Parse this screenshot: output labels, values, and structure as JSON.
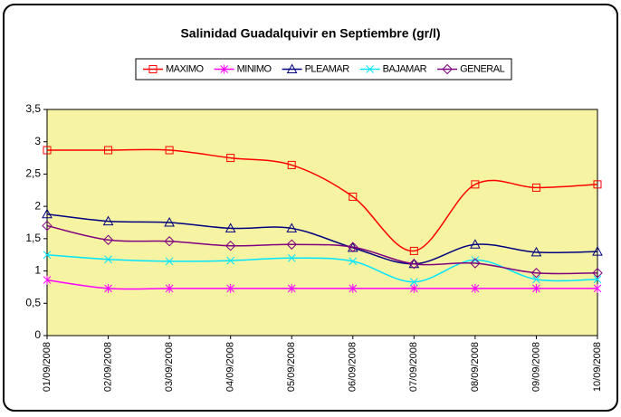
{
  "chart_data": {
    "type": "line",
    "title": "Salinidad Guadalquivir en Septiembre (gr/l)",
    "categories": [
      "01/09/2008",
      "02/09/2008",
      "03/09/2008",
      "04/09/2008",
      "05/09/2008",
      "06/09/2008",
      "07/09/2008",
      "08/09/2008",
      "09/09/2008",
      "10/09/2008"
    ],
    "series": [
      {
        "name": "MAXIMO",
        "color": "#ff0000",
        "marker": "square",
        "values": [
          2.87,
          2.87,
          2.87,
          2.75,
          2.64,
          2.15,
          1.31,
          2.34,
          2.29,
          2.34
        ]
      },
      {
        "name": "MINIMO",
        "color": "#ff00ff",
        "marker": "asterisk",
        "values": [
          0.86,
          0.73,
          0.73,
          0.73,
          0.73,
          0.73,
          0.73,
          0.73,
          0.73,
          0.73
        ]
      },
      {
        "name": "PLEAMAR",
        "color": "#000080",
        "marker": "triangle",
        "values": [
          1.88,
          1.77,
          1.75,
          1.66,
          1.66,
          1.36,
          1.11,
          1.41,
          1.29,
          1.3
        ]
      },
      {
        "name": "BAJAMAR",
        "color": "#00e5ff",
        "marker": "x",
        "values": [
          1.25,
          1.18,
          1.15,
          1.16,
          1.2,
          1.15,
          0.83,
          1.17,
          0.87,
          0.87
        ]
      },
      {
        "name": "GENERAL",
        "color": "#800080",
        "marker": "diamond",
        "values": [
          1.7,
          1.48,
          1.46,
          1.39,
          1.41,
          1.37,
          1.11,
          1.12,
          0.97,
          0.97
        ]
      }
    ],
    "ylim": [
      0,
      3.5
    ],
    "yticks": [
      0,
      {
        "value": 0.5,
        "label": "0,5"
      },
      1,
      {
        "value": 1.5,
        "label": "1,5"
      },
      2,
      {
        "value": 2.5,
        "label": "2,5"
      },
      3,
      {
        "value": 3.5,
        "label": "3,5"
      }
    ],
    "grid": false,
    "smooth": true,
    "legend": "top",
    "plot_background": "#f6f3a2"
  }
}
